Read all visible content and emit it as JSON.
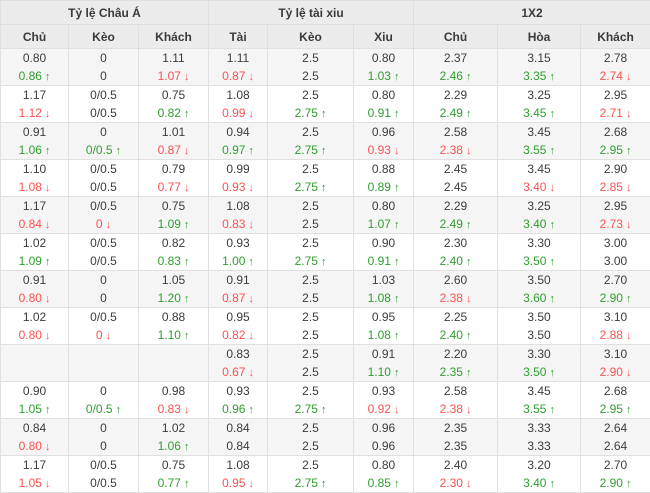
{
  "table": {
    "groups": [
      {
        "label": "Tỷ lệ Châu Á"
      },
      {
        "label": "Tỷ lệ tài xiu"
      },
      {
        "label": "1X2"
      }
    ],
    "columns": [
      "Chủ",
      "Kèo",
      "Khách",
      "Tài",
      "Kèo",
      "Xiu",
      "Chủ",
      "Hòa",
      "Khách"
    ],
    "arrows": {
      "up": "↑",
      "down": "↓"
    },
    "colors": {
      "up": "#2f9e2f",
      "down": "#fa5252",
      "text": "#3c3c3c",
      "header_bg": "#ececec",
      "stripe_bg": "#f5f5f5"
    },
    "rows": [
      {
        "cells": [
          {
            "open": "0.80",
            "live": "0.86",
            "trend": "up"
          },
          {
            "open": "0",
            "live": "0",
            "trend": null
          },
          {
            "open": "1.11",
            "live": "1.07",
            "trend": "down"
          },
          {
            "open": "1.11",
            "live": "0.87",
            "trend": "down"
          },
          {
            "open": "2.5",
            "live": "2.5",
            "trend": null
          },
          {
            "open": "0.80",
            "live": "1.03",
            "trend": "up"
          },
          {
            "open": "2.37",
            "live": "2.46",
            "trend": "up"
          },
          {
            "open": "3.15",
            "live": "3.35",
            "trend": "up"
          },
          {
            "open": "2.78",
            "live": "2.74",
            "trend": "down"
          }
        ]
      },
      {
        "cells": [
          {
            "open": "1.17",
            "live": "1.12",
            "trend": "down"
          },
          {
            "open": "0/0.5",
            "live": "0/0.5",
            "trend": null
          },
          {
            "open": "0.75",
            "live": "0.82",
            "trend": "up"
          },
          {
            "open": "1.08",
            "live": "0.99",
            "trend": "down"
          },
          {
            "open": "2.5",
            "live": "2.75",
            "trend": "up"
          },
          {
            "open": "0.80",
            "live": "0.91",
            "trend": "up"
          },
          {
            "open": "2.29",
            "live": "2.49",
            "trend": "up"
          },
          {
            "open": "3.25",
            "live": "3.45",
            "trend": "up"
          },
          {
            "open": "2.95",
            "live": "2.71",
            "trend": "down"
          }
        ]
      },
      {
        "cells": [
          {
            "open": "0.91",
            "live": "1.06",
            "trend": "up"
          },
          {
            "open": "0",
            "live": "0/0.5",
            "trend": "up"
          },
          {
            "open": "1.01",
            "live": "0.87",
            "trend": "down"
          },
          {
            "open": "0.94",
            "live": "0.97",
            "trend": "up"
          },
          {
            "open": "2.5",
            "live": "2.75",
            "trend": "up"
          },
          {
            "open": "0.96",
            "live": "0.93",
            "trend": "down"
          },
          {
            "open": "2.58",
            "live": "2.38",
            "trend": "down"
          },
          {
            "open": "3.45",
            "live": "3.55",
            "trend": "up"
          },
          {
            "open": "2.68",
            "live": "2.95",
            "trend": "up"
          }
        ]
      },
      {
        "cells": [
          {
            "open": "1.10",
            "live": "1.08",
            "trend": "down"
          },
          {
            "open": "0/0.5",
            "live": "0/0.5",
            "trend": null
          },
          {
            "open": "0.79",
            "live": "0.77",
            "trend": "down"
          },
          {
            "open": "0.99",
            "live": "0.93",
            "trend": "down"
          },
          {
            "open": "2.5",
            "live": "2.75",
            "trend": "up"
          },
          {
            "open": "0.88",
            "live": "0.89",
            "trend": "up"
          },
          {
            "open": "2.45",
            "live": "2.45",
            "trend": null
          },
          {
            "open": "3.45",
            "live": "3.40",
            "trend": "down"
          },
          {
            "open": "2.90",
            "live": "2.85",
            "trend": "down"
          }
        ]
      },
      {
        "cells": [
          {
            "open": "1.17",
            "live": "0.84",
            "trend": "down"
          },
          {
            "open": "0/0.5",
            "live": "0",
            "trend": "down"
          },
          {
            "open": "0.75",
            "live": "1.09",
            "trend": "up"
          },
          {
            "open": "1.08",
            "live": "0.83",
            "trend": "down"
          },
          {
            "open": "2.5",
            "live": "2.5",
            "trend": null
          },
          {
            "open": "0.80",
            "live": "1.07",
            "trend": "up"
          },
          {
            "open": "2.29",
            "live": "2.49",
            "trend": "up"
          },
          {
            "open": "3.25",
            "live": "3.40",
            "trend": "up"
          },
          {
            "open": "2.95",
            "live": "2.73",
            "trend": "down"
          }
        ]
      },
      {
        "cells": [
          {
            "open": "1.02",
            "live": "1.09",
            "trend": "up"
          },
          {
            "open": "0/0.5",
            "live": "0/0.5",
            "trend": null
          },
          {
            "open": "0.82",
            "live": "0.83",
            "trend": "up"
          },
          {
            "open": "0.93",
            "live": "1.00",
            "trend": "up"
          },
          {
            "open": "2.5",
            "live": "2.75",
            "trend": "up"
          },
          {
            "open": "0.90",
            "live": "0.91",
            "trend": "up"
          },
          {
            "open": "2.30",
            "live": "2.40",
            "trend": "up"
          },
          {
            "open": "3.30",
            "live": "3.50",
            "trend": "up"
          },
          {
            "open": "3.00",
            "live": "3.00",
            "trend": null
          }
        ]
      },
      {
        "cells": [
          {
            "open": "0.91",
            "live": "0.80",
            "trend": "down"
          },
          {
            "open": "0",
            "live": "0",
            "trend": null
          },
          {
            "open": "1.05",
            "live": "1.20",
            "trend": "up"
          },
          {
            "open": "0.91",
            "live": "0.87",
            "trend": "down"
          },
          {
            "open": "2.5",
            "live": "2.5",
            "trend": null
          },
          {
            "open": "1.03",
            "live": "1.08",
            "trend": "up"
          },
          {
            "open": "2.60",
            "live": "2.38",
            "trend": "down"
          },
          {
            "open": "3.50",
            "live": "3.60",
            "trend": "up"
          },
          {
            "open": "2.70",
            "live": "2.90",
            "trend": "up"
          }
        ]
      },
      {
        "cells": [
          {
            "open": "1.02",
            "live": "0.80",
            "trend": "down"
          },
          {
            "open": "0/0.5",
            "live": "0",
            "trend": "down"
          },
          {
            "open": "0.88",
            "live": "1.10",
            "trend": "up"
          },
          {
            "open": "0.95",
            "live": "0.82",
            "trend": "down"
          },
          {
            "open": "2.5",
            "live": "2.5",
            "trend": null
          },
          {
            "open": "0.95",
            "live": "1.08",
            "trend": "up"
          },
          {
            "open": "2.25",
            "live": "2.40",
            "trend": "up"
          },
          {
            "open": "3.50",
            "live": "3.50",
            "trend": null
          },
          {
            "open": "3.10",
            "live": "2.88",
            "trend": "down"
          }
        ]
      },
      {
        "cells": [
          {
            "open": "",
            "live": "",
            "trend": null
          },
          {
            "open": "",
            "live": "",
            "trend": null
          },
          {
            "open": "",
            "live": "",
            "trend": null
          },
          {
            "open": "0.83",
            "live": "0.67",
            "trend": "down"
          },
          {
            "open": "2.5",
            "live": "2.5",
            "trend": null
          },
          {
            "open": "0.91",
            "live": "1.10",
            "trend": "up"
          },
          {
            "open": "2.20",
            "live": "2.35",
            "trend": "up"
          },
          {
            "open": "3.30",
            "live": "3.50",
            "trend": "up"
          },
          {
            "open": "3.10",
            "live": "2.90",
            "trend": "down"
          }
        ]
      },
      {
        "cells": [
          {
            "open": "0.90",
            "live": "1.05",
            "trend": "up"
          },
          {
            "open": "0",
            "live": "0/0.5",
            "trend": "up"
          },
          {
            "open": "0.98",
            "live": "0.83",
            "trend": "down"
          },
          {
            "open": "0.93",
            "live": "0.96",
            "trend": "up"
          },
          {
            "open": "2.5",
            "live": "2.75",
            "trend": "up"
          },
          {
            "open": "0.93",
            "live": "0.92",
            "trend": "down"
          },
          {
            "open": "2.58",
            "live": "2.38",
            "trend": "down"
          },
          {
            "open": "3.45",
            "live": "3.55",
            "trend": "up"
          },
          {
            "open": "2.68",
            "live": "2.95",
            "trend": "up"
          }
        ]
      },
      {
        "cells": [
          {
            "open": "0.84",
            "live": "0.80",
            "trend": "down"
          },
          {
            "open": "0",
            "live": "0",
            "trend": null
          },
          {
            "open": "1.02",
            "live": "1.06",
            "trend": "up"
          },
          {
            "open": "0.84",
            "live": "0.84",
            "trend": null
          },
          {
            "open": "2.5",
            "live": "2.5",
            "trend": null
          },
          {
            "open": "0.96",
            "live": "0.96",
            "trend": null
          },
          {
            "open": "2.35",
            "live": "2.35",
            "trend": null
          },
          {
            "open": "3.33",
            "live": "3.33",
            "trend": null
          },
          {
            "open": "2.64",
            "live": "2.64",
            "trend": null
          }
        ]
      },
      {
        "cells": [
          {
            "open": "1.17",
            "live": "1.05",
            "trend": "down"
          },
          {
            "open": "0/0.5",
            "live": "0/0.5",
            "trend": null
          },
          {
            "open": "0.75",
            "live": "0.77",
            "trend": "up"
          },
          {
            "open": "1.08",
            "live": "0.95",
            "trend": "down"
          },
          {
            "open": "2.5",
            "live": "2.75",
            "trend": "up"
          },
          {
            "open": "0.80",
            "live": "0.85",
            "trend": "up"
          },
          {
            "open": "2.40",
            "live": "2.30",
            "trend": "down"
          },
          {
            "open": "3.20",
            "live": "3.40",
            "trend": "up"
          },
          {
            "open": "2.70",
            "live": "2.90",
            "trend": "up"
          }
        ]
      }
    ]
  }
}
